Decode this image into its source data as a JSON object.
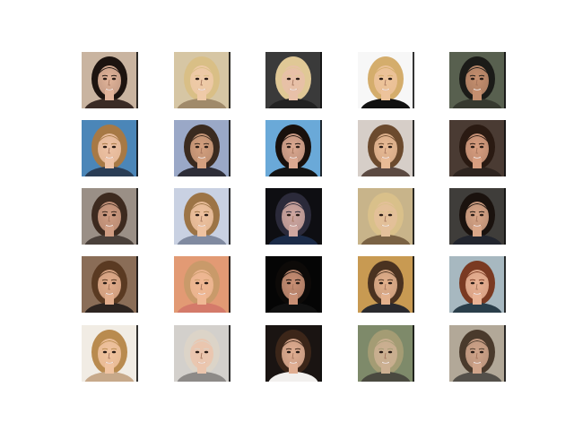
{
  "grid": {
    "rows": 5,
    "cols": 5,
    "tiles": [
      {
        "bg": "#c9b4a0",
        "hair": "#1d1410",
        "skin": "#e2b49a",
        "cloth": "#3a2b25",
        "lip": "#a84a4a"
      },
      {
        "bg": "#d6c6a4",
        "hair": "#d9bf86",
        "skin": "#efcaa8",
        "cloth": "#a08a6a",
        "lip": "#b5666a"
      },
      {
        "bg": "#3a3a3a",
        "hair": "#e0c896",
        "skin": "#e8c0a8",
        "cloth": "#222222",
        "lip": "#b05a5a"
      },
      {
        "bg": "#f7f7f7",
        "hair": "#d4ad6c",
        "skin": "#edc39b",
        "cloth": "#111111",
        "lip": "#b06060"
      },
      {
        "bg": "#58604f",
        "hair": "#1b1b18",
        "skin": "#c58f6f",
        "cloth": "#36392f",
        "lip": "#9a4b47"
      },
      {
        "bg": "#4b86b8",
        "hair": "#a77945",
        "skin": "#eec2a5",
        "cloth": "#2a3d55",
        "lip": "#b66b6b"
      },
      {
        "bg": "#9aa8c7",
        "hair": "#3a2a1f",
        "skin": "#d4a07f",
        "cloth": "#2d2d37",
        "lip": "#9d5858"
      },
      {
        "bg": "#6aa9d8",
        "hair": "#18100c",
        "skin": "#dba890",
        "cloth": "#141414",
        "lip": "#a04f50"
      },
      {
        "bg": "#d6cec8",
        "hair": "#6b4a2e",
        "skin": "#e9bb96",
        "cloth": "#5c4a42",
        "lip": "#b56262"
      },
      {
        "bg": "#4a3b33",
        "hair": "#2a1a12",
        "skin": "#d89e80",
        "cloth": "#2e241f",
        "lip": "#a34b4b"
      },
      {
        "bg": "#9a8f86",
        "hair": "#3d2a1f",
        "skin": "#cf9c82",
        "cloth": "#4a403a",
        "lip": "#a35858"
      },
      {
        "bg": "#c9d1e2",
        "hair": "#9c7446",
        "skin": "#eec2a0",
        "cloth": "#808aa0",
        "lip": "#b66a66"
      },
      {
        "bg": "#0e0e12",
        "hair": "#2b2a3a",
        "skin": "#cfa7a0",
        "cloth": "#1b2b48",
        "lip": "#a35a66"
      },
      {
        "bg": "#c8b48a",
        "hair": "#d9c08a",
        "skin": "#e4c09a",
        "cloth": "#7a6244",
        "lip": "#b06a5a"
      },
      {
        "bg": "#3f3d3a",
        "hair": "#1a120e",
        "skin": "#d9a688",
        "cloth": "#22252e",
        "lip": "#a24c4c"
      },
      {
        "bg": "#8a6d57",
        "hair": "#5a3a22",
        "skin": "#e2ad8c",
        "cloth": "#2d2420",
        "lip": "#b05858"
      },
      {
        "bg": "#e29a74",
        "hair": "#c99a6a",
        "skin": "#f0b894",
        "cloth": "#d47a6a",
        "lip": "#c0625e"
      },
      {
        "bg": "#050505",
        "hair": "#0d0a08",
        "skin": "#c88f74",
        "cloth": "#111111",
        "lip": "#9a3f42"
      },
      {
        "bg": "#c89a52",
        "hair": "#4a3220",
        "skin": "#e2b08c",
        "cloth": "#2a2a2e",
        "lip": "#a5575a"
      },
      {
        "bg": "#a7b8c0",
        "hair": "#7a3a22",
        "skin": "#e8b294",
        "cloth": "#2a3e4a",
        "lip": "#b95858"
      },
      {
        "bg": "#f1ece4",
        "hair": "#b98b4f",
        "skin": "#f0c3a0",
        "cloth": "#c7a98a",
        "lip": "#b96464"
      },
      {
        "bg": "#d3d0cc",
        "hair": "#dcd4c8",
        "skin": "#ebc5ad",
        "cloth": "#8d8a88",
        "lip": "#b56c6c"
      },
      {
        "bg": "#1a1412",
        "hair": "#3c2619",
        "skin": "#e0ae92",
        "cloth": "#f2f0ee",
        "lip": "#b55656"
      },
      {
        "bg": "#7e8a6a",
        "hair": "#a49c74",
        "skin": "#ccb092",
        "cloth": "#4a4a40",
        "lip": "#9f6060"
      },
      {
        "bg": "#b2a898",
        "hair": "#4a3a2c",
        "skin": "#cfa48a",
        "cloth": "#54504a",
        "lip": "#a45858"
      }
    ]
  }
}
